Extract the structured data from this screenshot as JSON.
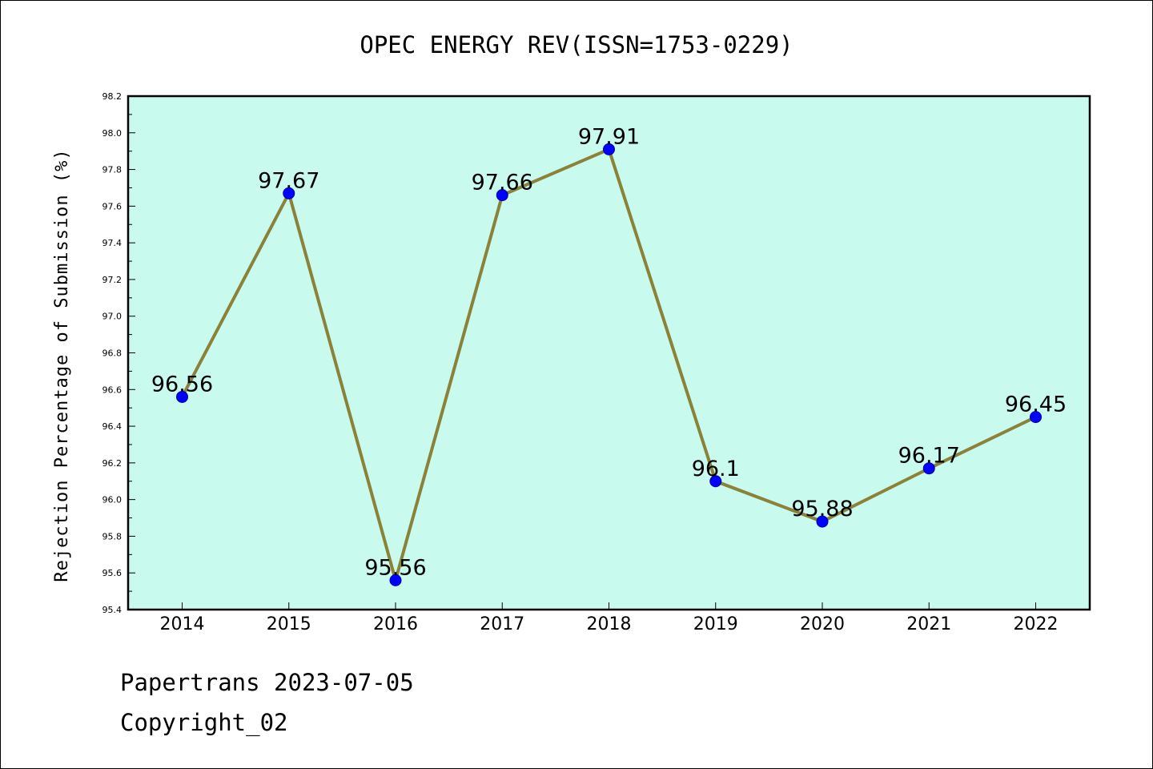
{
  "chart_data": {
    "type": "line",
    "title": "OPEC ENERGY REV(ISSN=1753-0229)",
    "xlabel": "",
    "ylabel": "Rejection Percentage of Submission (%)",
    "categories": [
      "2014",
      "2015",
      "2016",
      "2017",
      "2018",
      "2019",
      "2020",
      "2021",
      "2022"
    ],
    "values": [
      96.56,
      97.67,
      95.56,
      97.66,
      97.91,
      96.1,
      95.88,
      96.17,
      96.45
    ],
    "data_labels": [
      "96.56",
      "97.67",
      "95.56",
      "97.66",
      "97.91",
      "96.1",
      "95.88",
      "96.17",
      "96.45"
    ],
    "ylim": [
      95.4,
      98.2
    ],
    "yticks": [
      "95.4",
      "95.6",
      "95.8",
      "96.0",
      "96.2",
      "96.4",
      "96.6",
      "96.8",
      "97.0",
      "97.2",
      "97.4",
      "97.6",
      "97.8",
      "98.0",
      "98.2"
    ],
    "grid": false,
    "legend": "none",
    "colors": {
      "plot_background": "#c8faee",
      "line": "#8b8238",
      "marker": "#0000ff",
      "frame": "#000000"
    }
  },
  "footer": {
    "line1": "Papertrans 2023-07-05",
    "line2": "Copyright_02"
  }
}
